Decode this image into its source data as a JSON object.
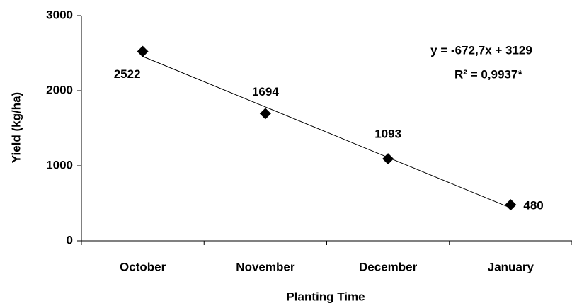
{
  "chart_data": {
    "type": "scatter",
    "x_label": "Planting Time",
    "y_label": "Yield (kg/ha)",
    "categories": [
      "October",
      "November",
      "December",
      "January"
    ],
    "values": [
      2522,
      1694,
      1093,
      480
    ],
    "color": "#000000",
    "ylim": [
      0,
      3000
    ],
    "yticks": [
      0,
      1000,
      2000,
      3000
    ],
    "grid": false,
    "trendline": {
      "slope": -672.7,
      "intercept": 3129
    },
    "annotations": [
      "y = -672,7x + 3129",
      "R² = 0,9937*"
    ]
  }
}
